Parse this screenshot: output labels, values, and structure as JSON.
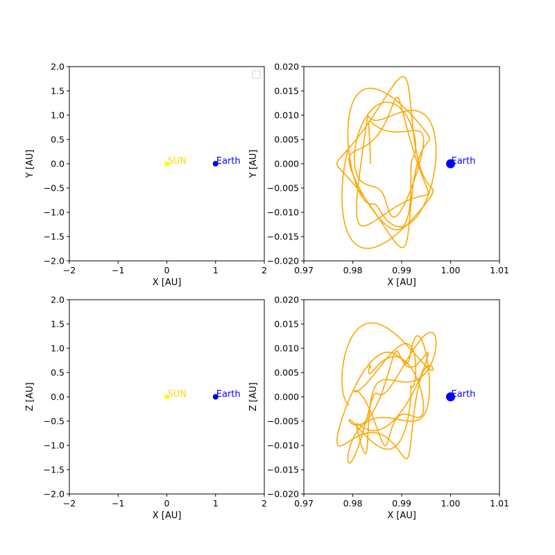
{
  "colors": {
    "orbit": "#ffa500",
    "sun": "#ffff00",
    "sun_text": "#ffd700",
    "earth": "#0000ff"
  },
  "chart_data": [
    {
      "type": "scatter",
      "xlabel": "X [AU]",
      "ylabel": "Y [AU]",
      "xlim": [
        -2,
        2
      ],
      "ylim": [
        -2,
        2
      ],
      "xticks": [
        -2,
        -1,
        0,
        1,
        2
      ],
      "yticks": [
        -2.0,
        -1.5,
        -1.0,
        -0.5,
        0.0,
        0.5,
        1.0,
        1.5,
        2.0
      ],
      "xtick_labels": [
        "−2",
        "−1",
        "0",
        "1",
        "2"
      ],
      "ytick_labels": [
        "−2.0",
        "−1.5",
        "−1.0",
        "−0.5",
        "0.0",
        "0.5",
        "1.0",
        "1.5",
        "2.0"
      ],
      "legend": "top-right (empty)",
      "points": [
        {
          "label": "SUN",
          "x": 0,
          "y": 0,
          "color": "#ffff00",
          "text_color": "#ffd700",
          "size": "small"
        },
        {
          "label": "Earth",
          "x": 1,
          "y": 0,
          "color": "#0000ff",
          "text_color": "#0000ff",
          "size": "small"
        }
      ]
    },
    {
      "type": "line",
      "xlabel": "X [AU]",
      "ylabel": "Y [AU]",
      "xlim": [
        0.97,
        1.01
      ],
      "ylim": [
        -0.02,
        0.02
      ],
      "xticks": [
        0.97,
        0.98,
        0.99,
        1.0,
        1.01
      ],
      "yticks": [
        -0.02,
        -0.015,
        -0.01,
        -0.005,
        0.0,
        0.005,
        0.01,
        0.015,
        0.02
      ],
      "xtick_labels": [
        "0.97",
        "0.98",
        "0.99",
        "1.00",
        "1.01"
      ],
      "ytick_labels": [
        "−0.020",
        "−0.015",
        "−0.010",
        "−0.005",
        "0.000",
        "0.005",
        "0.010",
        "0.015",
        "0.020"
      ],
      "points": [
        {
          "label": "Earth",
          "x": 1.0,
          "y": 0.0,
          "color": "#0000ff",
          "text_color": "#0000ff",
          "size": "large"
        }
      ],
      "series": [
        {
          "color": "#ffa500",
          "x": [],
          "y": []
        }
      ]
    },
    {
      "type": "scatter",
      "xlabel": "X [AU]",
      "ylabel": "Z [AU]",
      "xlim": [
        -2,
        2
      ],
      "ylim": [
        -2,
        2
      ],
      "xticks": [
        -2,
        -1,
        0,
        1,
        2
      ],
      "yticks": [
        -2.0,
        -1.5,
        -1.0,
        -0.5,
        0.0,
        0.5,
        1.0,
        1.5,
        2.0
      ],
      "xtick_labels": [
        "−2",
        "−1",
        "0",
        "1",
        "2"
      ],
      "ytick_labels": [
        "−2.0",
        "−1.5",
        "−1.0",
        "−0.5",
        "0.0",
        "0.5",
        "1.0",
        "1.5",
        "2.0"
      ],
      "points": [
        {
          "label": "SUN",
          "x": 0,
          "y": 0,
          "color": "#ffff00",
          "text_color": "#ffd700",
          "size": "small"
        },
        {
          "label": "Earth",
          "x": 1,
          "y": 0,
          "color": "#0000ff",
          "text_color": "#0000ff",
          "size": "small"
        }
      ]
    },
    {
      "type": "line",
      "xlabel": "X [AU]",
      "ylabel": "Z [AU]",
      "xlim": [
        0.97,
        1.01
      ],
      "ylim": [
        -0.02,
        0.02
      ],
      "xticks": [
        0.97,
        0.98,
        0.99,
        1.0,
        1.01
      ],
      "yticks": [
        -0.02,
        -0.015,
        -0.01,
        -0.005,
        0.0,
        0.005,
        0.01,
        0.015,
        0.02
      ],
      "xtick_labels": [
        "0.97",
        "0.98",
        "0.99",
        "1.00",
        "1.01"
      ],
      "ytick_labels": [
        "−0.020",
        "−0.015",
        "−0.010",
        "−0.005",
        "0.000",
        "0.005",
        "0.010",
        "0.015",
        "0.020"
      ],
      "points": [
        {
          "label": "Earth",
          "x": 1.0,
          "y": 0.0,
          "color": "#0000ff",
          "text_color": "#0000ff",
          "size": "large"
        }
      ],
      "series": [
        {
          "color": "#ffa500",
          "x": [],
          "y": []
        }
      ]
    }
  ]
}
